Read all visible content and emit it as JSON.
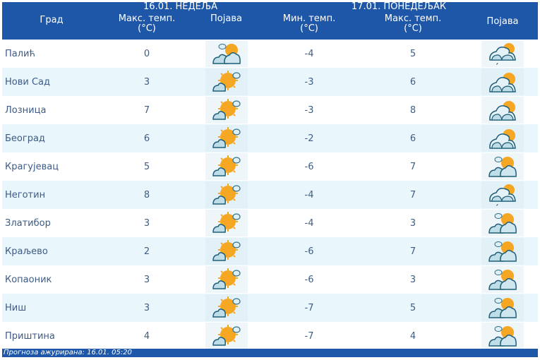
{
  "header": {
    "city_label": "Град",
    "day1": {
      "date_label": "16.01. НЕДЕЉА",
      "max_temp_label": "Макс. темп.",
      "max_temp_unit": "(°C)",
      "phenomenon_label": "Појава"
    },
    "day2": {
      "date_label": "17.01. ПОНЕДЕЉАК",
      "min_temp_label": "Мин. темп.",
      "min_temp_unit": "(°C)",
      "max_temp_label": "Макс. темп.",
      "max_temp_unit": "(°C)",
      "phenomenon_label": "Појава"
    }
  },
  "rows": [
    {
      "city": "Палић",
      "d1_max": "0",
      "d1_icon": "partly-cloudy-icon",
      "d2_min": "-4",
      "d2_max": "5",
      "d2_icon": "cloudy-drizzle-icon"
    },
    {
      "city": "Нови Сад",
      "d1_max": "3",
      "d1_icon": "sunny-cloud-icon",
      "d2_min": "-3",
      "d2_max": "6",
      "d2_icon": "cloudy-sun-icon"
    },
    {
      "city": "Лозница",
      "d1_max": "7",
      "d1_icon": "sunny-cloud-icon",
      "d2_min": "-3",
      "d2_max": "8",
      "d2_icon": "cloudy-sun-icon"
    },
    {
      "city": "Београд",
      "d1_max": "6",
      "d1_icon": "sunny-cloud-icon",
      "d2_min": "-2",
      "d2_max": "6",
      "d2_icon": "cloudy-sun-icon"
    },
    {
      "city": "Крагујевац",
      "d1_max": "5",
      "d1_icon": "sunny-cloud-icon",
      "d2_min": "-6",
      "d2_max": "7",
      "d2_icon": "partly-cloudy-icon"
    },
    {
      "city": "Неготин",
      "d1_max": "8",
      "d1_icon": "sunny-cloud-icon",
      "d2_min": "-4",
      "d2_max": "7",
      "d2_icon": "cloudy-drizzle-icon"
    },
    {
      "city": "Златибор",
      "d1_max": "3",
      "d1_icon": "sunny-cloud-icon",
      "d2_min": "-4",
      "d2_max": "3",
      "d2_icon": "partly-cloudy-icon"
    },
    {
      "city": "Краљево",
      "d1_max": "2",
      "d1_icon": "sunny-cloud-icon",
      "d2_min": "-6",
      "d2_max": "7",
      "d2_icon": "partly-cloudy-icon"
    },
    {
      "city": "Копаоник",
      "d1_max": "3",
      "d1_icon": "sunny-cloud-icon",
      "d2_min": "-6",
      "d2_max": "3",
      "d2_icon": "partly-cloudy-icon"
    },
    {
      "city": "Ниш",
      "d1_max": "3",
      "d1_icon": "sunny-cloud-icon",
      "d2_min": "-7",
      "d2_max": "5",
      "d2_icon": "partly-cloudy-icon"
    },
    {
      "city": "Приштина",
      "d1_max": "4",
      "d1_icon": "sunny-cloud-icon",
      "d2_min": "-7",
      "d2_max": "4",
      "d2_icon": "partly-cloudy-icon"
    }
  ],
  "footer": {
    "updated_label": "Прогноза ажурирана:  16.01. 05:20"
  },
  "colors": {
    "header_bg": "#1f57a8",
    "alt_row_bg": "#e9f6fc",
    "text": "#3f5d82",
    "sun": "#f5a623"
  }
}
